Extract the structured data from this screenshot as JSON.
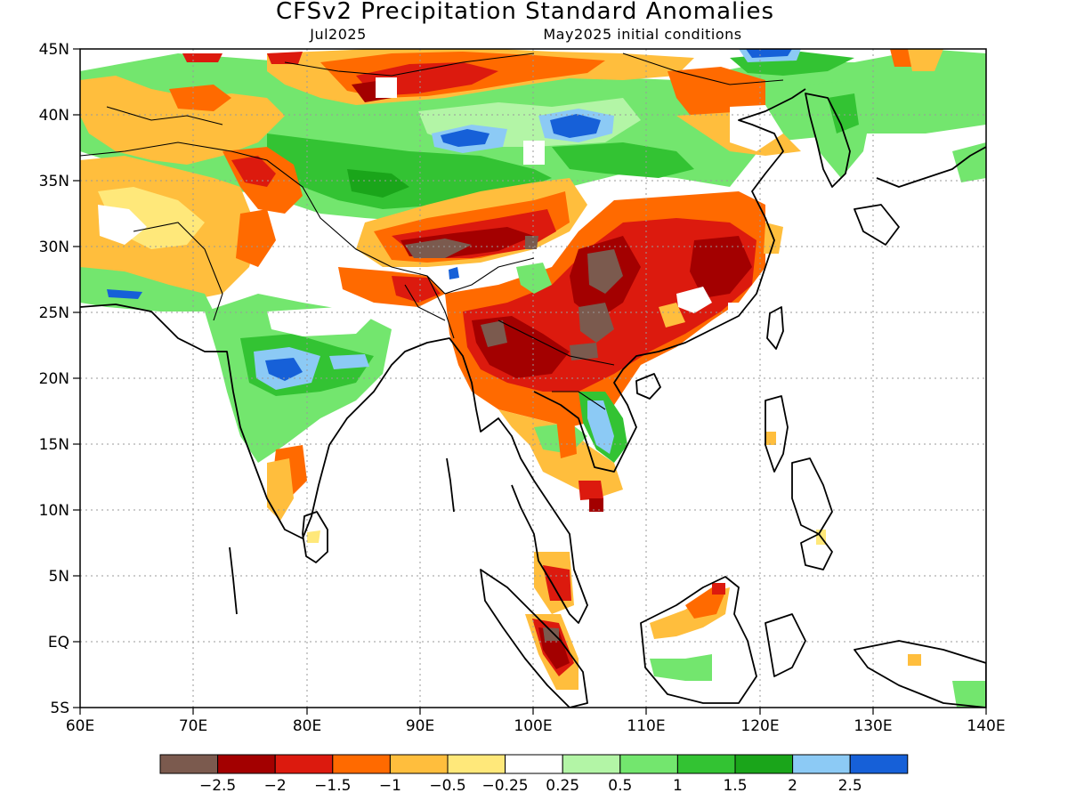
{
  "title": "CFSv2 Precipitation Standard Anomalies",
  "valid_month": "Jul2025",
  "init_label": "May2025 initial conditions",
  "x_ticks": [
    "60E",
    "70E",
    "80E",
    "90E",
    "100E",
    "110E",
    "120E",
    "130E",
    "140E"
  ],
  "y_ticks": [
    "45N",
    "40N",
    "35N",
    "30N",
    "25N",
    "20N",
    "15N",
    "10N",
    "5N",
    "EQ",
    "5S"
  ],
  "colorbar": {
    "colors": [
      "#7b5a4e",
      "#a30000",
      "#dc1a0e",
      "#ff6a00",
      "#ffbe3d",
      "#ffe87a",
      "#ffffff",
      "#b3f5a6",
      "#73e66e",
      "#33c333",
      "#1aa51a",
      "#8ccaf5",
      "#1660d8"
    ],
    "labels": [
      "−2.5",
      "−2",
      "−1.5",
      "−1",
      "−0.5",
      "−0.25",
      "0.25",
      "0.5",
      "1",
      "1.5",
      "2",
      "2.5"
    ]
  }
}
